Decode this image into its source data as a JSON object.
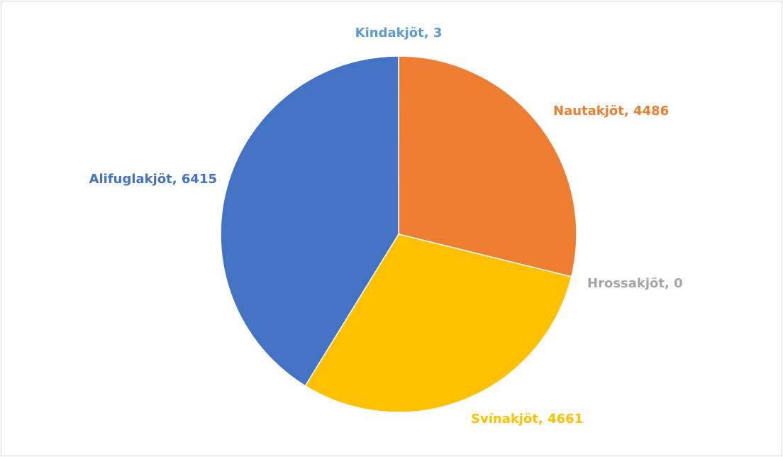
{
  "chart_data": {
    "type": "pie",
    "categories": [
      "Kindakjöt",
      "Nautakjöt",
      "Hrossakjöt",
      "Svínakjöt",
      "Alifuglakjöt"
    ],
    "values": [
      3,
      4486,
      0,
      4661,
      6415
    ],
    "value_labels": [
      "Kindakjöt, 3",
      "Nautakjöt, 4486",
      "Hrossakjöt, 0",
      "Svínakjöt, 4661",
      "Alifuglakjöt, 6415"
    ],
    "colors": [
      "#5b9bd5",
      "#ed7d31",
      "#a5a5a5",
      "#ffc000",
      "#4472c4"
    ]
  }
}
